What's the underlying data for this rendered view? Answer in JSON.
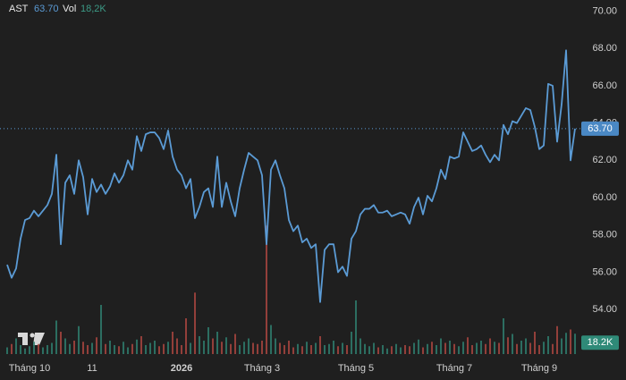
{
  "chart_data": {
    "type": "line",
    "categories": [
      null,
      null,
      null,
      null,
      null,
      "Tháng 10",
      null,
      null,
      null,
      null,
      null,
      null,
      null,
      null,
      null,
      null,
      null,
      null,
      null,
      "11",
      null,
      null,
      null,
      null,
      null,
      null,
      null,
      null,
      null,
      null,
      null,
      null,
      null,
      null,
      null,
      null,
      null,
      null,
      null,
      "2026",
      null,
      null,
      null,
      null,
      null,
      null,
      null,
      null,
      null,
      null,
      null,
      null,
      null,
      null,
      null,
      null,
      null,
      "Tháng 3",
      null,
      null,
      null,
      null,
      null,
      null,
      null,
      null,
      null,
      null,
      null,
      null,
      null,
      null,
      null,
      null,
      null,
      null,
      null,
      null,
      "Tháng 5",
      null,
      null,
      null,
      null,
      null,
      null,
      null,
      null,
      null,
      null,
      null,
      null,
      null,
      null,
      null,
      null,
      null,
      null,
      null,
      null,
      null,
      "Tháng 7",
      null,
      null,
      null,
      null,
      null,
      null,
      null,
      null,
      null,
      null,
      null,
      null,
      null,
      null,
      null,
      null,
      null,
      null,
      "Tháng 9",
      null,
      null,
      null,
      null,
      null,
      null,
      null,
      null
    ],
    "series": [
      {
        "name": "AST",
        "color": "#5b9bd5",
        "values": [
          56.4,
          55.7,
          56.2,
          57.8,
          58.8,
          58.9,
          59.3,
          59.0,
          59.3,
          59.6,
          60.2,
          62.3,
          57.5,
          60.8,
          61.2,
          60.2,
          62.0,
          61.1,
          59.1,
          61.0,
          60.3,
          60.7,
          60.2,
          60.6,
          61.3,
          60.8,
          61.2,
          62.0,
          61.5,
          63.3,
          62.5,
          63.4,
          63.5,
          63.5,
          63.2,
          62.6,
          63.6,
          62.2,
          61.5,
          61.2,
          60.5,
          61.0,
          58.9,
          59.5,
          60.3,
          60.5,
          59.5,
          62.2,
          59.5,
          60.8,
          59.8,
          59.0,
          60.5,
          61.5,
          62.4,
          62.2,
          62.0,
          61.2,
          57.5,
          61.5,
          62.0,
          61.2,
          60.5,
          58.8,
          58.2,
          58.5,
          57.6,
          57.8,
          57.3,
          57.5,
          54.4,
          57.2,
          57.5,
          57.5,
          56.0,
          56.3,
          55.8,
          57.8,
          58.2,
          59.1,
          59.4,
          59.4,
          59.6,
          59.2,
          59.2,
          59.3,
          59.0,
          59.1,
          59.2,
          59.1,
          58.6,
          59.5,
          60.0,
          59.1,
          60.1,
          59.8,
          60.5,
          61.5,
          61.0,
          62.2,
          62.1,
          62.2,
          63.5,
          63.0,
          62.5,
          62.6,
          62.8,
          62.3,
          61.9,
          62.3,
          62.0,
          63.9,
          63.4,
          64.1,
          64.0,
          64.4,
          64.8,
          64.7,
          63.8,
          62.6,
          62.8,
          66.1,
          66.0,
          63.0,
          65.0,
          67.9,
          62.0,
          63.7
        ]
      }
    ],
    "volume": {
      "name": "Vol",
      "up_color": "#2f7d6d",
      "down_color": "#a8453f",
      "ylim": [
        0,
        200000
      ],
      "values": [
        6000,
        9000,
        14000,
        8000,
        5000,
        7000,
        11000,
        9000,
        6000,
        8000,
        10000,
        30000,
        20000,
        14000,
        9000,
        12000,
        25000,
        11000,
        8000,
        10000,
        15000,
        44000,
        9000,
        12000,
        8000,
        7000,
        11000,
        6000,
        9000,
        13000,
        16000,
        8000,
        10000,
        12000,
        7000,
        9000,
        11000,
        20000,
        14000,
        8000,
        32000,
        10000,
        55000,
        16000,
        12000,
        24000,
        14000,
        20000,
        11000,
        15000,
        9000,
        18000,
        8000,
        11000,
        14000,
        10000,
        9000,
        12000,
        115000,
        26000,
        14000,
        10000,
        8000,
        12000,
        6000,
        9000,
        7000,
        11000,
        8000,
        10000,
        16000,
        8000,
        9000,
        12000,
        7000,
        10000,
        8000,
        20000,
        48000,
        14000,
        9000,
        7000,
        10000,
        6000,
        8000,
        5000,
        7000,
        9000,
        6000,
        8000,
        7000,
        10000,
        13000,
        6000,
        9000,
        11000,
        8000,
        14000,
        10000,
        12000,
        9000,
        7000,
        11000,
        15000,
        8000,
        10000,
        12000,
        9000,
        14000,
        11000,
        10000,
        32000,
        15000,
        18000,
        9000,
        12000,
        14000,
        10000,
        20000,
        8000,
        11000,
        16000,
        9000,
        25000,
        14000,
        19000,
        22000,
        18200
      ]
    },
    "ylim": [
      53,
      70.6
    ],
    "yticks": [
      {
        "value": 54,
        "label": "54.00"
      },
      {
        "value": 56,
        "label": "56.00"
      },
      {
        "value": 58,
        "label": "58.00"
      },
      {
        "value": 60,
        "label": "60.00"
      },
      {
        "value": 62,
        "label": "62.00"
      },
      {
        "value": 64,
        "label": "64.00"
      },
      {
        "value": 66,
        "label": "66.00"
      },
      {
        "value": 68,
        "label": "68.00"
      },
      {
        "value": 70,
        "label": "70.00"
      }
    ],
    "grid": false,
    "last_price_label": "63.70",
    "last_volume_label": "18.2K",
    "header_volume_label": "18,2K"
  }
}
